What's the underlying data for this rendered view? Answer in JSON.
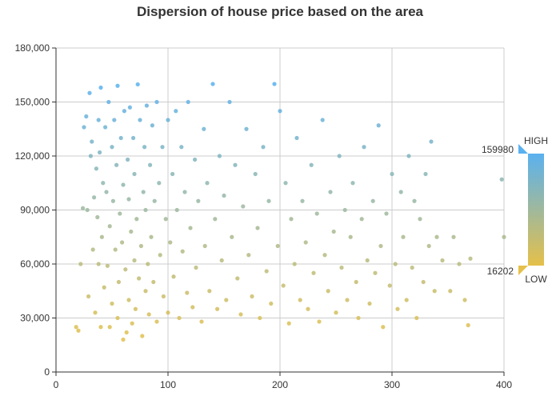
{
  "chart_data": {
    "type": "scatter",
    "title": "Dispersion of house price based on the area",
    "xlabel": "",
    "ylabel": "",
    "xlim": [
      0,
      400
    ],
    "ylim": [
      0,
      180000
    ],
    "x_ticks": [
      "0",
      "100",
      "200",
      "300",
      "400"
    ],
    "y_ticks": [
      "0",
      "30,000",
      "60,000",
      "90,000",
      "120,000",
      "150,000",
      "180,000"
    ],
    "grid": true,
    "visual_map": {
      "min": 16202,
      "max": 159980,
      "min_label": "16202",
      "max_label": "159980",
      "text_high": "HIGH",
      "text_low": "LOW",
      "color_high": "#5ab1ef",
      "color_low": "#e5c04a",
      "placement": "right"
    },
    "series": [
      {
        "points": [
          [
            18,
            25000
          ],
          [
            20,
            23000
          ],
          [
            22,
            60000
          ],
          [
            24,
            91000
          ],
          [
            25,
            136000
          ],
          [
            27,
            142000
          ],
          [
            28,
            90000
          ],
          [
            29,
            42000
          ],
          [
            30,
            155000
          ],
          [
            31,
            120000
          ],
          [
            32,
            128000
          ],
          [
            33,
            68000
          ],
          [
            34,
            97000
          ],
          [
            35,
            33000
          ],
          [
            36,
            113000
          ],
          [
            37,
            86000
          ],
          [
            38,
            140000
          ],
          [
            38,
            60000
          ],
          [
            39,
            122000
          ],
          [
            40,
            158000
          ],
          [
            40,
            25000
          ],
          [
            41,
            75000
          ],
          [
            42,
            105000
          ],
          [
            43,
            47000
          ],
          [
            44,
            136000
          ],
          [
            45,
            100000
          ],
          [
            46,
            59000
          ],
          [
            47,
            150000
          ],
          [
            48,
            25000
          ],
          [
            48,
            81000
          ],
          [
            50,
            125000
          ],
          [
            50,
            38000
          ],
          [
            51,
            95000
          ],
          [
            52,
            140000
          ],
          [
            53,
            68000
          ],
          [
            54,
            115000
          ],
          [
            55,
            30000
          ],
          [
            55,
            159000
          ],
          [
            56,
            50000
          ],
          [
            57,
            88000
          ],
          [
            58,
            130000
          ],
          [
            59,
            72000
          ],
          [
            60,
            18000
          ],
          [
            60,
            104000
          ],
          [
            61,
            145000
          ],
          [
            62,
            57000
          ],
          [
            63,
            22000
          ],
          [
            64,
            118000
          ],
          [
            65,
            40000
          ],
          [
            65,
            96000
          ],
          [
            66,
            147000
          ],
          [
            67,
            78000
          ],
          [
            68,
            27000
          ],
          [
            69,
            130000
          ],
          [
            70,
            62000
          ],
          [
            70,
            110000
          ],
          [
            71,
            35000
          ],
          [
            72,
            85000
          ],
          [
            73,
            159800
          ],
          [
            74,
            52000
          ],
          [
            75,
            140000
          ],
          [
            76,
            70000
          ],
          [
            77,
            20000
          ],
          [
            78,
            100000
          ],
          [
            79,
            125000
          ],
          [
            80,
            45000
          ],
          [
            80,
            90000
          ],
          [
            81,
            148000
          ],
          [
            82,
            60000
          ],
          [
            83,
            32000
          ],
          [
            84,
            115000
          ],
          [
            85,
            75000
          ],
          [
            86,
            137000
          ],
          [
            87,
            50000
          ],
          [
            88,
            95000
          ],
          [
            90,
            28000
          ],
          [
            90,
            150000
          ],
          [
            92,
            105000
          ],
          [
            93,
            65000
          ],
          [
            95,
            125000
          ],
          [
            96,
            42000
          ],
          [
            98,
            85000
          ],
          [
            100,
            33000
          ],
          [
            100,
            140000
          ],
          [
            102,
            72000
          ],
          [
            104,
            110000
          ],
          [
            105,
            53000
          ],
          [
            107,
            145000
          ],
          [
            108,
            90000
          ],
          [
            110,
            30000
          ],
          [
            112,
            125000
          ],
          [
            113,
            67000
          ],
          [
            115,
            100000
          ],
          [
            117,
            44000
          ],
          [
            118,
            150000
          ],
          [
            120,
            80000
          ],
          [
            122,
            36000
          ],
          [
            124,
            118000
          ],
          [
            125,
            58000
          ],
          [
            127,
            95000
          ],
          [
            130,
            28000
          ],
          [
            132,
            135000
          ],
          [
            133,
            70000
          ],
          [
            135,
            105000
          ],
          [
            137,
            45000
          ],
          [
            140,
            160000
          ],
          [
            142,
            85000
          ],
          [
            144,
            35000
          ],
          [
            146,
            120000
          ],
          [
            148,
            62000
          ],
          [
            150,
            98000
          ],
          [
            152,
            40000
          ],
          [
            155,
            150000
          ],
          [
            157,
            75000
          ],
          [
            160,
            115000
          ],
          [
            162,
            52000
          ],
          [
            165,
            32000
          ],
          [
            167,
            92000
          ],
          [
            170,
            135000
          ],
          [
            172,
            65000
          ],
          [
            175,
            42000
          ],
          [
            178,
            110000
          ],
          [
            180,
            80000
          ],
          [
            182,
            30000
          ],
          [
            185,
            125000
          ],
          [
            188,
            56000
          ],
          [
            190,
            95000
          ],
          [
            192,
            38000
          ],
          [
            195,
            160000
          ],
          [
            198,
            70000
          ],
          [
            200,
            145000
          ],
          [
            203,
            48000
          ],
          [
            205,
            105000
          ],
          [
            208,
            27000
          ],
          [
            210,
            85000
          ],
          [
            213,
            60000
          ],
          [
            215,
            130000
          ],
          [
            218,
            40000
          ],
          [
            220,
            95000
          ],
          [
            223,
            72000
          ],
          [
            225,
            35000
          ],
          [
            228,
            115000
          ],
          [
            230,
            55000
          ],
          [
            233,
            88000
          ],
          [
            235,
            28000
          ],
          [
            238,
            140000
          ],
          [
            240,
            65000
          ],
          [
            243,
            45000
          ],
          [
            245,
            100000
          ],
          [
            248,
            78000
          ],
          [
            250,
            33000
          ],
          [
            253,
            120000
          ],
          [
            255,
            58000
          ],
          [
            258,
            90000
          ],
          [
            260,
            40000
          ],
          [
            263,
            75000
          ],
          [
            265,
            105000
          ],
          [
            268,
            50000
          ],
          [
            270,
            30000
          ],
          [
            273,
            85000
          ],
          [
            275,
            125000
          ],
          [
            278,
            62000
          ],
          [
            280,
            38000
          ],
          [
            283,
            95000
          ],
          [
            285,
            55000
          ],
          [
            288,
            137000
          ],
          [
            290,
            70000
          ],
          [
            292,
            25000
          ],
          [
            295,
            88000
          ],
          [
            298,
            48000
          ],
          [
            300,
            110000
          ],
          [
            303,
            60000
          ],
          [
            305,
            35000
          ],
          [
            308,
            100000
          ],
          [
            310,
            75000
          ],
          [
            313,
            40000
          ],
          [
            315,
            120000
          ],
          [
            318,
            58000
          ],
          [
            320,
            95000
          ],
          [
            322,
            30000
          ],
          [
            325,
            85000
          ],
          [
            328,
            50000
          ],
          [
            330,
            110000
          ],
          [
            333,
            70000
          ],
          [
            335,
            128000
          ],
          [
            338,
            45000
          ],
          [
            340,
            75000
          ],
          [
            345,
            62000
          ],
          [
            352,
            45000
          ],
          [
            355,
            75000
          ],
          [
            360,
            60000
          ],
          [
            365,
            40000
          ],
          [
            368,
            26000
          ],
          [
            370,
            63000
          ],
          [
            398,
            107000
          ],
          [
            400,
            75000
          ]
        ]
      }
    ]
  }
}
